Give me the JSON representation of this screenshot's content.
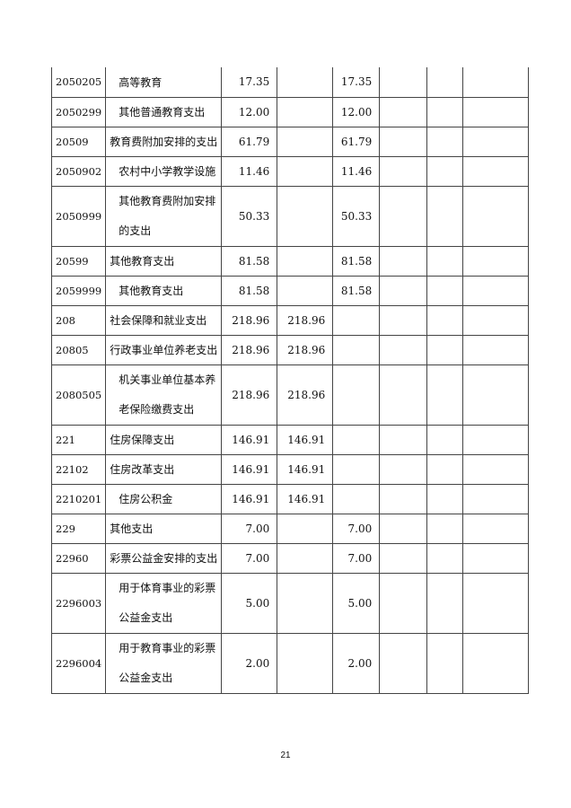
{
  "rows": [
    {
      "code": "2050205",
      "name": "高等教育",
      "indent": true,
      "total": "17.35",
      "basic": "",
      "project": "17.35"
    },
    {
      "code": "2050299",
      "name": "其他普通教育支出",
      "indent": true,
      "total": "12.00",
      "basic": "",
      "project": "12.00"
    },
    {
      "code": "20509",
      "name": "教育费附加安排的支出",
      "indent": false,
      "total": "61.79",
      "basic": "",
      "project": "61.79"
    },
    {
      "code": "2050902",
      "name": "农村中小学教学设施",
      "indent": true,
      "total": "11.46",
      "basic": "",
      "project": "11.46"
    },
    {
      "code": "2050999",
      "name": "其他教育费附加安排的支出",
      "indent": true,
      "total": "50.33",
      "basic": "",
      "project": "50.33",
      "tall": true
    },
    {
      "code": "20599",
      "name": "其他教育支出",
      "indent": false,
      "total": "81.58",
      "basic": "",
      "project": "81.58"
    },
    {
      "code": "2059999",
      "name": "其他教育支出",
      "indent": true,
      "total": "81.58",
      "basic": "",
      "project": "81.58"
    },
    {
      "code": "208",
      "name": "社会保障和就业支出",
      "indent": false,
      "total": "218.96",
      "basic": "218.96",
      "project": ""
    },
    {
      "code": "20805",
      "name": "行政事业单位养老支出",
      "indent": false,
      "total": "218.96",
      "basic": "218.96",
      "project": ""
    },
    {
      "code": "2080505",
      "name": "机关事业单位基本养老保险缴费支出",
      "indent": true,
      "total": "218.96",
      "basic": "218.96",
      "project": "",
      "tall": true
    },
    {
      "code": "221",
      "name": "住房保障支出",
      "indent": false,
      "total": "146.91",
      "basic": "146.91",
      "project": ""
    },
    {
      "code": "22102",
      "name": "住房改革支出",
      "indent": false,
      "total": "146.91",
      "basic": "146.91",
      "project": ""
    },
    {
      "code": "2210201",
      "name": "住房公积金",
      "indent": true,
      "total": "146.91",
      "basic": "146.91",
      "project": ""
    },
    {
      "code": "229",
      "name": "其他支出",
      "indent": false,
      "total": "7.00",
      "basic": "",
      "project": "7.00"
    },
    {
      "code": "22960",
      "name": "彩票公益金安排的支出",
      "indent": false,
      "total": "7.00",
      "basic": "",
      "project": "7.00"
    },
    {
      "code": "2296003",
      "name": "用于体育事业的彩票公益金支出",
      "indent": true,
      "total": "5.00",
      "basic": "",
      "project": "5.00",
      "tall": true
    },
    {
      "code": "2296004",
      "name": "用于教育事业的彩票公益金支出",
      "indent": true,
      "total": "2.00",
      "basic": "",
      "project": "2.00",
      "tall": true
    }
  ],
  "page_number": "21"
}
